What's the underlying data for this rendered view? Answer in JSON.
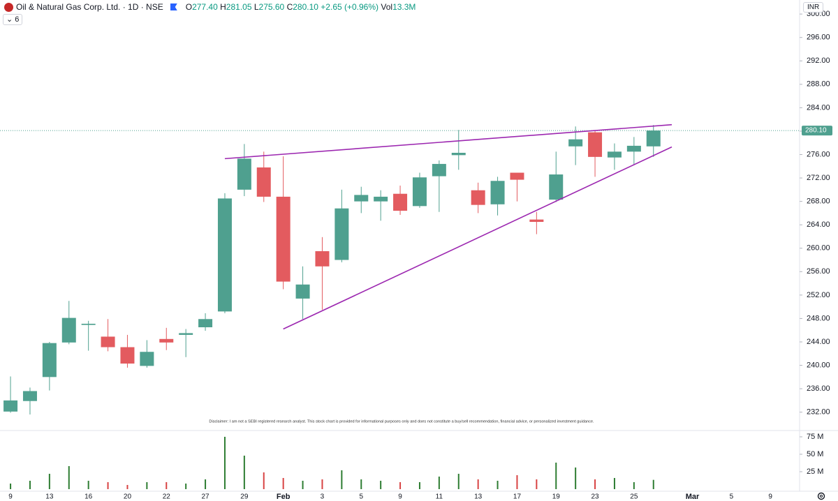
{
  "header": {
    "title": "Oil & Natural Gas Corp. Ltd. · 1D · NSE",
    "ohlc": [
      {
        "label": "O",
        "value": "277.40"
      },
      {
        "label": "H",
        "value": "281.05"
      },
      {
        "label": "L",
        "value": "275.60"
      },
      {
        "label": "C",
        "value": "280.10"
      }
    ],
    "change": "+2.65 (+0.96%)",
    "volume_label": "Vol",
    "volume": "13.3M",
    "indicators": "6",
    "currency": "INR"
  },
  "chart_data": {
    "type": "candlestick",
    "disclaimer": "Disclaimer: I am not a SEBI registered research analyst. This stock chart is provided for informational purposes only and does not constitute a buy/sell recommendation, financial advice, or personalized investment guidance.",
    "categories": [
      "9",
      null,
      "13",
      null,
      "16",
      null,
      "20",
      null,
      "22",
      null,
      "27",
      null,
      "29",
      null,
      "Feb",
      null,
      "3",
      null,
      "5",
      null,
      "9",
      null,
      "11",
      null,
      "13",
      null,
      "17",
      null,
      "19",
      null,
      "23",
      null,
      "25",
      null,
      null,
      "Mar",
      null,
      "5",
      null,
      "9",
      null
    ],
    "open": [
      232.1,
      233.9,
      238.0,
      243.9,
      246.9,
      244.9,
      243.1,
      239.9,
      244.5,
      245.2,
      246.5,
      249.2,
      270.0,
      273.8,
      268.8,
      251.4,
      259.5,
      258.0,
      268.0,
      268.0,
      269.3,
      267.2,
      272.3,
      275.9,
      269.9,
      267.5,
      272.9,
      264.9,
      268.3,
      277.4,
      279.8,
      275.5,
      276.5,
      277.4,
      null,
      null,
      null,
      null,
      null,
      null,
      null
    ],
    "high": [
      238.1,
      236.2,
      244.0,
      251.0,
      247.6,
      247.9,
      245.2,
      244.3,
      246.4,
      246.2,
      248.9,
      269.4,
      277.8,
      276.5,
      275.7,
      256.9,
      261.9,
      270.0,
      270.5,
      269.9,
      270.7,
      272.9,
      275.0,
      280.2,
      271.2,
      272.2,
      272.9,
      266.2,
      276.5,
      280.8,
      280.0,
      277.9,
      279.0,
      281.05,
      null,
      null,
      null,
      null,
      null,
      null,
      null
    ],
    "low": [
      231.9,
      231.6,
      235.7,
      243.6,
      242.5,
      242.4,
      239.6,
      239.6,
      242.6,
      241.4,
      245.9,
      248.9,
      268.9,
      267.9,
      253.0,
      247.9,
      249.5,
      257.6,
      266.0,
      264.7,
      265.7,
      266.9,
      266.2,
      273.4,
      266.0,
      265.6,
      268.0,
      262.4,
      267.9,
      274.2,
      272.2,
      273.4,
      274.2,
      275.6,
      null,
      null,
      null,
      null,
      null,
      null,
      null
    ],
    "close": [
      234.0,
      235.6,
      243.8,
      248.1,
      247.1,
      243.1,
      240.3,
      242.3,
      243.9,
      245.5,
      247.9,
      268.5,
      275.3,
      268.8,
      254.3,
      253.8,
      256.9,
      266.8,
      269.1,
      268.8,
      266.4,
      272.1,
      274.4,
      276.3,
      267.4,
      271.5,
      271.7,
      264.5,
      272.6,
      278.6,
      275.6,
      276.5,
      277.5,
      280.1,
      null,
      null,
      null,
      null,
      null,
      null,
      null
    ],
    "volume": [
      8,
      12,
      22,
      33,
      12,
      10,
      6,
      10,
      10,
      8,
      14,
      75,
      48,
      24,
      16,
      12,
      14,
      27,
      14,
      12,
      10,
      10,
      18,
      22,
      14,
      12,
      20,
      14,
      38,
      31,
      14,
      16,
      10,
      13.3,
      null,
      null,
      null,
      null,
      null,
      null,
      null
    ],
    "up_color": "#4fa08f",
    "down_color": "#e35b5f",
    "xlim": [
      -0.54,
      40.5
    ],
    "ylim": [
      229.1,
      302.4
    ],
    "yticks": [
      {
        "value": 232,
        "label": "232.00"
      },
      {
        "value": 236,
        "label": "236.00"
      },
      {
        "value": 240,
        "label": "240.00"
      },
      {
        "value": 244,
        "label": "244.00"
      },
      {
        "value": 248,
        "label": "248.00"
      },
      {
        "value": 252,
        "label": "252.00"
      },
      {
        "value": 256,
        "label": "256.00"
      },
      {
        "value": 260,
        "label": "260.00"
      },
      {
        "value": 264,
        "label": "264.00"
      },
      {
        "value": 268,
        "label": "268.00"
      },
      {
        "value": 272,
        "label": "272.00"
      },
      {
        "value": 276,
        "label": "276.00"
      },
      {
        "value": 280,
        "label": "280.00"
      },
      {
        "value": 284,
        "label": "284.00"
      },
      {
        "value": 288,
        "label": "288.00"
      },
      {
        "value": 292,
        "label": "292.00"
      },
      {
        "value": 296,
        "label": "296.00"
      },
      {
        "value": 300,
        "label": "300.00"
      }
    ],
    "y2lim": [
      0,
      83
    ],
    "y2ticks": [
      {
        "value": 25,
        "label": "25 M"
      },
      {
        "value": 50,
        "label": "50 M"
      },
      {
        "value": 75,
        "label": "75 M"
      }
    ],
    "last_price": {
      "value": 280.1,
      "label": "280.10"
    },
    "trendlines": [
      {
        "color": "#9c27b0",
        "x": [
          11,
          33.94
        ],
        "values": [
          275.3,
          281.1
        ]
      },
      {
        "color": "#9c27b0",
        "x": [
          14,
          33.94
        ],
        "values": [
          246.2,
          277.3
        ]
      }
    ]
  }
}
